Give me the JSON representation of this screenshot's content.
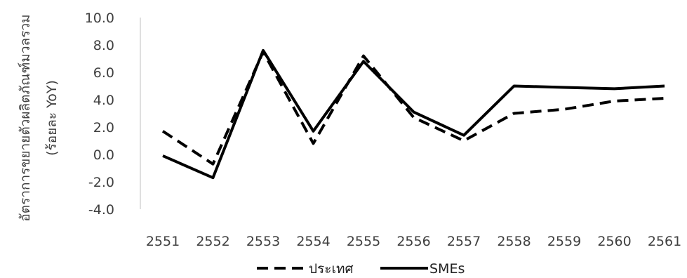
{
  "chart_data": {
    "type": "line",
    "title": "",
    "xlabel": "",
    "ylabel_line1": "อัตราการขยายตัวผลิตภัณฑ์มวลรวม",
    "ylabel_line2": "(ร้อยละ YoY)",
    "categories": [
      "2551",
      "2552",
      "2553",
      "2554",
      "2555",
      "2556",
      "2557",
      "2558",
      "2559",
      "2560",
      "2561"
    ],
    "ylim": [
      -4.0,
      10.0
    ],
    "yticks": [
      "-4.0",
      "-2.0",
      "0.0",
      "2.0",
      "4.0",
      "6.0",
      "8.0",
      "10.0"
    ],
    "grid": "none",
    "legend_position": "bottom",
    "series": [
      {
        "name": "ประเทศ",
        "style": "dashed",
        "color": "#000000",
        "values": [
          1.7,
          -0.7,
          7.5,
          0.8,
          7.2,
          2.7,
          1.0,
          3.0,
          3.3,
          3.9,
          4.1
        ]
      },
      {
        "name": "SMEs",
        "style": "solid",
        "color": "#000000",
        "values": [
          -0.1,
          -1.7,
          7.6,
          1.7,
          6.8,
          3.1,
          1.4,
          5.0,
          4.9,
          4.8,
          5.0
        ]
      }
    ]
  }
}
